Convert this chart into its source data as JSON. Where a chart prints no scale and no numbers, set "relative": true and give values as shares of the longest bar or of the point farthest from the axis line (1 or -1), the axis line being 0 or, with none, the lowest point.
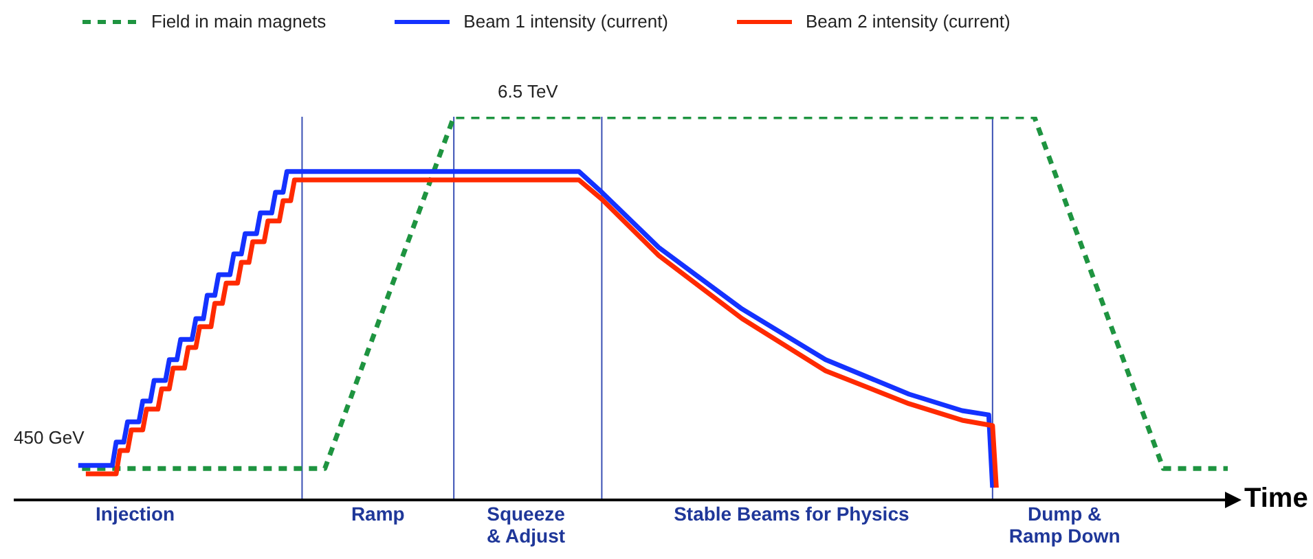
{
  "chart_data": {
    "type": "line",
    "relative": true,
    "xlabel": "Time",
    "legend": "top",
    "categories": [
      null,
      null,
      null,
      null,
      null,
      null,
      null,
      null,
      null,
      null,
      null,
      null,
      null,
      null,
      null,
      null,
      null,
      null,
      null,
      null,
      null,
      null,
      null,
      null,
      null,
      null,
      null,
      null,
      null,
      null,
      null,
      null,
      "Injection",
      null,
      null,
      null,
      null,
      null,
      null,
      null,
      null,
      null,
      null,
      null,
      null,
      null,
      null,
      null,
      null,
      null,
      null,
      null,
      null,
      null,
      null,
      null,
      null,
      null,
      null,
      null,
      null,
      null,
      null,
      null,
      null,
      null,
      null,
      null,
      null,
      null,
      null,
      null,
      null,
      null,
      null,
      null,
      null,
      null,
      null,
      null,
      null,
      null,
      null,
      null,
      null,
      null,
      null,
      null,
      null,
      null,
      null,
      null,
      null,
      null,
      null,
      null,
      "Ramp",
      null,
      null,
      null,
      null,
      null,
      null,
      null,
      null,
      null,
      null,
      null,
      null,
      null,
      null,
      null,
      null,
      null,
      null,
      null,
      null,
      null,
      null,
      null,
      null,
      null,
      null,
      null,
      null,
      null,
      null,
      null,
      null,
      null,
      null,
      null,
      null,
      null,
      null,
      "Squeeze\n& Adjust",
      null,
      null,
      null,
      null,
      null,
      null,
      null,
      null,
      null,
      null,
      null,
      null,
      null,
      null,
      null,
      null,
      null,
      null,
      null,
      null,
      null,
      null,
      null,
      null,
      null,
      null,
      null,
      null,
      null,
      null,
      null,
      null,
      null,
      null,
      null,
      null,
      null,
      null,
      null,
      null,
      null,
      null,
      null,
      null,
      null,
      null,
      null,
      null,
      null,
      null,
      null,
      null,
      null,
      null,
      null,
      null,
      null,
      null,
      null,
      null,
      null,
      null,
      null,
      null,
      null,
      null,
      null,
      null,
      null,
      "Stable Beams for Physics",
      null,
      null,
      null,
      null,
      null,
      null,
      null,
      null,
      null,
      null,
      null,
      null,
      null,
      null,
      null,
      null,
      null,
      null,
      null,
      null,
      null,
      null,
      null,
      null,
      null,
      null,
      null,
      null,
      null,
      null,
      null,
      null,
      null,
      null,
      null,
      null,
      null,
      null,
      null,
      null,
      null,
      null,
      null,
      null,
      null,
      null,
      null,
      null,
      null,
      null,
      null,
      null,
      null,
      null,
      null,
      null,
      null,
      null,
      null,
      null,
      null,
      null,
      null,
      null,
      null,
      null,
      null,
      null,
      null,
      null,
      null,
      "Dump &\nRamp Down",
      null,
      null,
      null,
      null,
      null,
      null,
      null,
      null,
      null,
      null,
      null,
      null,
      null,
      null,
      null,
      null,
      null,
      null,
      null,
      null,
      null,
      null,
      null,
      null,
      null,
      null,
      null,
      null,
      null,
      null,
      null,
      null,
      null,
      null,
      null,
      null,
      null,
      null,
      null,
      null,
      null,
      null,
      null
    ],
    "series": [
      {
        "name": "Field in main magnets",
        "color": "#1e9440",
        "line_style": "dashed",
        "values": [
          null,
          null,
          null,
          null,
          null,
          null,
          null,
          null,
          null,
          null,
          null,
          null,
          null,
          null,
          null,
          null,
          null,
          null,
          0.082,
          null,
          null,
          null,
          null,
          null,
          null,
          null,
          null,
          null,
          null,
          null,
          null,
          null,
          null,
          null,
          null,
          null,
          null,
          null,
          null,
          null,
          null,
          null,
          null,
          null,
          null,
          null,
          null,
          null,
          null,
          null,
          null,
          null,
          null,
          null,
          null,
          null,
          null,
          null,
          null,
          null,
          null,
          null,
          null,
          null,
          null,
          null,
          null,
          null,
          null,
          null,
          null,
          null,
          null,
          null,
          null,
          null,
          null,
          null,
          null,
          null,
          null,
          null,
          0.082,
          null,
          null,
          null,
          null,
          null,
          null,
          null,
          null,
          null,
          null,
          null,
          null,
          null,
          null,
          null,
          null,
          null,
          null,
          null,
          null,
          null,
          null,
          null,
          null,
          null,
          null,
          null,
          null,
          null,
          null,
          null,
          null,
          null,
          1,
          null,
          null,
          null,
          null,
          null,
          null,
          null,
          null,
          null,
          null,
          null,
          null,
          null,
          null,
          null,
          null,
          null,
          null,
          null,
          null,
          null,
          null,
          null,
          null,
          null,
          null,
          null,
          null,
          null,
          null,
          null,
          null,
          null,
          null,
          null,
          null,
          null,
          null,
          null,
          null,
          null,
          null,
          null,
          null,
          null,
          null,
          null,
          null,
          null,
          null,
          null,
          null,
          null,
          null,
          null,
          null,
          null,
          null,
          null,
          null,
          null,
          null,
          null,
          null,
          null,
          null,
          null,
          null,
          null,
          null,
          null,
          null,
          null,
          null,
          null,
          null,
          null,
          null,
          null,
          null,
          null,
          null,
          null,
          null,
          null,
          null,
          null,
          null,
          null,
          null,
          null,
          null,
          null,
          null,
          null,
          null,
          null,
          null,
          null,
          null,
          null,
          null,
          null,
          null,
          null,
          null,
          null,
          null,
          null,
          null,
          null,
          null,
          null,
          null,
          null,
          null,
          null,
          null,
          null,
          null,
          null,
          null,
          null,
          null,
          null,
          null,
          null,
          null,
          null,
          null,
          null,
          null,
          null,
          null,
          null,
          null,
          null,
          null,
          null,
          null,
          null,
          null,
          null,
          null,
          null,
          null,
          null,
          null,
          null,
          null,
          null,
          null,
          1,
          null,
          null,
          null,
          null,
          null,
          null,
          null,
          null,
          null,
          null,
          null,
          null,
          null,
          null,
          null,
          null,
          null,
          null,
          null,
          null,
          null,
          null,
          null,
          null,
          null,
          null,
          null,
          null,
          null,
          null,
          null,
          null,
          null,
          0.082,
          null,
          null,
          null,
          null,
          null,
          null,
          null,
          null,
          null,
          null,
          null,
          null,
          null,
          null,
          null,
          null,
          0.082
        ]
      },
      {
        "name": "Beam 1 intensity (current)",
        "color": "#1432ff",
        "values": [
          null,
          null,
          null,
          null,
          null,
          null,
          null,
          null,
          null,
          null,
          null,
          null,
          null,
          null,
          null,
          null,
          null,
          0.09,
          null,
          null,
          null,
          null,
          null,
          null,
          null,
          null,
          0.09,
          0.151,
          null,
          0.151,
          0.204,
          null,
          null,
          0.204,
          0.258,
          null,
          0.258,
          0.312,
          null,
          null,
          0.312,
          0.366,
          null,
          0.366,
          0.419,
          null,
          null,
          0.419,
          0.473,
          null,
          0.473,
          0.534,
          null,
          0.534,
          0.588,
          null,
          null,
          0.588,
          0.642,
          null,
          0.642,
          0.695,
          null,
          null,
          0.695,
          0.749,
          null,
          null,
          0.749,
          0.803,
          null,
          0.803,
          0.857,
          null,
          null,
          null,
          null,
          null,
          null,
          null,
          null,
          null,
          null,
          null,
          null,
          null,
          null,
          null,
          null,
          null,
          null,
          null,
          null,
          null,
          null,
          null,
          null,
          null,
          null,
          null,
          null,
          null,
          null,
          null,
          null,
          null,
          null,
          null,
          null,
          null,
          null,
          null,
          null,
          null,
          null,
          null,
          null,
          null,
          null,
          null,
          null,
          null,
          null,
          null,
          null,
          null,
          null,
          null,
          null,
          null,
          null,
          null,
          null,
          null,
          null,
          null,
          null,
          null,
          null,
          null,
          null,
          null,
          null,
          null,
          null,
          null,
          null,
          null,
          null,
          0.857,
          null,
          null,
          null,
          null,
          null,
          0.803,
          null,
          null,
          null,
          null,
          null,
          null,
          null,
          null,
          null,
          null,
          null,
          null,
          null,
          null,
          0.659,
          null,
          null,
          null,
          null,
          null,
          null,
          null,
          null,
          null,
          null,
          null,
          null,
          null,
          null,
          null,
          null,
          null,
          null,
          null,
          null,
          null,
          0.498,
          null,
          null,
          null,
          null,
          null,
          null,
          null,
          null,
          null,
          null,
          null,
          null,
          null,
          null,
          null,
          null,
          null,
          null,
          null,
          null,
          null,
          0.366,
          null,
          null,
          null,
          null,
          null,
          null,
          null,
          null,
          null,
          null,
          null,
          null,
          null,
          null,
          null,
          null,
          null,
          null,
          null,
          null,
          null,
          0.276,
          null,
          null,
          null,
          null,
          null,
          null,
          null,
          null,
          null,
          null,
          null,
          null,
          null,
          0.233,
          null,
          null,
          null,
          null,
          null,
          null,
          0.222,
          0.032,
          null,
          null,
          null,
          null,
          null,
          null,
          null,
          null,
          null,
          null,
          null,
          null,
          null,
          null,
          null,
          null,
          null,
          null,
          null,
          null,
          null,
          null,
          null,
          null,
          null,
          null,
          null,
          null,
          null,
          null,
          null,
          null,
          null,
          null,
          null,
          null,
          null,
          null,
          null,
          null,
          null,
          null,
          null,
          null,
          null,
          null,
          null,
          null,
          null,
          null,
          null,
          null,
          null,
          null,
          null,
          null,
          null,
          null,
          null,
          null,
          null,
          null
        ]
      },
      {
        "name": "Beam 2 intensity (current)",
        "color": "#ff2a00",
        "values": [
          null,
          null,
          null,
          null,
          null,
          null,
          null,
          null,
          null,
          null,
          null,
          null,
          null,
          null,
          null,
          null,
          null,
          null,
          null,
          0.068,
          null,
          null,
          null,
          null,
          null,
          null,
          null,
          0.068,
          0.129,
          null,
          0.129,
          0.183,
          null,
          null,
          0.183,
          0.237,
          null,
          null,
          0.237,
          0.29,
          null,
          0.29,
          0.344,
          null,
          null,
          0.344,
          0.398,
          null,
          0.398,
          0.452,
          null,
          null,
          0.452,
          0.513,
          null,
          0.513,
          0.566,
          null,
          null,
          0.566,
          0.62,
          null,
          0.62,
          0.674,
          null,
          null,
          0.674,
          0.728,
          null,
          null,
          0.728,
          0.781,
          null,
          0.781,
          0.835,
          null,
          null,
          null,
          null,
          null,
          null,
          null,
          null,
          null,
          null,
          null,
          null,
          null,
          null,
          null,
          null,
          null,
          null,
          null,
          null,
          null,
          null,
          null,
          null,
          null,
          null,
          null,
          null,
          null,
          null,
          null,
          null,
          null,
          null,
          null,
          null,
          null,
          null,
          null,
          null,
          null,
          null,
          null,
          null,
          null,
          null,
          null,
          null,
          null,
          null,
          null,
          null,
          null,
          null,
          null,
          null,
          null,
          null,
          null,
          null,
          null,
          null,
          null,
          null,
          null,
          null,
          null,
          null,
          null,
          null,
          null,
          null,
          null,
          null,
          0.835,
          null,
          null,
          null,
          null,
          null,
          0.785,
          null,
          null,
          null,
          null,
          null,
          null,
          null,
          null,
          null,
          null,
          null,
          null,
          null,
          null,
          0.638,
          null,
          null,
          null,
          null,
          null,
          null,
          null,
          null,
          null,
          null,
          null,
          null,
          null,
          null,
          null,
          null,
          null,
          null,
          null,
          null,
          null,
          0.473,
          null,
          null,
          null,
          null,
          null,
          null,
          null,
          null,
          null,
          null,
          null,
          null,
          null,
          null,
          null,
          null,
          null,
          null,
          null,
          null,
          null,
          0.337,
          null,
          null,
          null,
          null,
          null,
          null,
          null,
          null,
          null,
          null,
          null,
          null,
          null,
          null,
          null,
          null,
          null,
          null,
          null,
          null,
          null,
          0.251,
          null,
          null,
          null,
          null,
          null,
          null,
          null,
          null,
          null,
          null,
          null,
          null,
          null,
          0.208,
          null,
          null,
          null,
          null,
          null,
          null,
          null,
          0.194,
          0.032,
          null,
          null,
          null,
          null,
          null,
          null,
          null,
          null,
          null,
          null,
          null,
          null,
          null,
          null,
          null,
          null,
          null,
          null,
          null,
          null,
          null,
          null,
          null,
          null,
          null,
          null,
          null,
          null,
          null,
          null,
          null,
          null,
          null,
          null,
          null,
          null,
          null,
          null,
          null,
          null,
          null,
          null,
          null,
          null,
          null,
          null,
          null,
          null,
          null,
          null,
          null,
          null,
          null,
          null,
          null,
          null,
          null,
          null,
          null,
          null,
          null
        ]
      }
    ],
    "annotations": [
      "450 GeV",
      "6.5 TeV"
    ]
  }
}
